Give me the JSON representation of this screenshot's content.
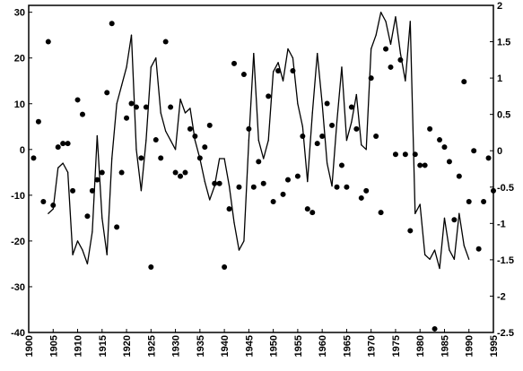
{
  "chart_data": {
    "type": "line",
    "title": "",
    "xlabel": "",
    "ylabel": "",
    "y2label": "",
    "xlim": [
      1900,
      1995
    ],
    "ylim": [
      -40,
      31.5
    ],
    "y2lim": [
      -2.5,
      2
    ],
    "grid": false,
    "legend": "none",
    "x_ticks": [
      1900,
      1905,
      1910,
      1915,
      1920,
      1925,
      1930,
      1935,
      1940,
      1945,
      1950,
      1955,
      1960,
      1965,
      1970,
      1975,
      1980,
      1985,
      1990,
      1995
    ],
    "x_tick_labels": [
      "1900",
      "1905",
      "1910",
      "1915",
      "1920",
      "1925",
      "1930",
      "1935",
      "1940",
      "1945",
      "1950",
      "1955",
      "1960",
      "1965",
      "1970",
      "1975",
      "1980",
      "1985",
      "1990",
      "1995"
    ],
    "y_ticks": [
      30,
      20,
      10,
      0,
      -10,
      -20,
      -30,
      -40
    ],
    "y_tick_labels": [
      "30",
      "20",
      "10",
      "0",
      "-10",
      "-20",
      "-30",
      "-40"
    ],
    "y2_ticks": [
      2,
      1.5,
      1,
      0.5,
      0,
      -0.5,
      -1,
      -1.5,
      -2,
      -2.5
    ],
    "y2_tick_labels": [
      "2",
      "1.5",
      "1",
      "0.5",
      "0",
      "-0.5",
      "-1",
      "-1.5",
      "-2",
      "-2.5"
    ],
    "series": [
      {
        "axis": "left",
        "style": "line",
        "color": "#000000",
        "x": [
          1904,
          1905,
          1906,
          1907,
          1908,
          1909,
          1910,
          1911,
          1912,
          1913,
          1914,
          1915,
          1916,
          1917,
          1918,
          1919,
          1920,
          1921,
          1922,
          1923,
          1924,
          1925,
          1926,
          1927,
          1928,
          1929,
          1930,
          1931,
          1932,
          1933,
          1934,
          1935,
          1936,
          1937,
          1938,
          1939,
          1940,
          1941,
          1942,
          1943,
          1944,
          1945,
          1946,
          1947,
          1948,
          1949,
          1950,
          1951,
          1952,
          1953,
          1954,
          1955,
          1956,
          1957,
          1958,
          1959,
          1960,
          1961,
          1962,
          1963,
          1964,
          1965,
          1966,
          1967,
          1968,
          1969,
          1970,
          1971,
          1972,
          1973,
          1974,
          1975,
          1976,
          1977,
          1978,
          1979,
          1980,
          1981,
          1982,
          1983,
          1984,
          1985,
          1986,
          1987,
          1988,
          1989,
          1990
        ],
        "values": [
          -14,
          -13,
          -4,
          -3,
          -5,
          -23,
          -20,
          -22,
          -25,
          -18,
          3,
          -15,
          -23,
          -2,
          10,
          14,
          18,
          25,
          0,
          -9,
          2,
          18,
          20,
          8,
          4,
          2,
          0,
          11,
          8,
          9,
          2,
          -2,
          -7,
          -11,
          -8,
          -2,
          -2,
          -8,
          -16,
          -22,
          -20,
          2,
          21,
          2,
          -2,
          2,
          17,
          19,
          15,
          22,
          20,
          10,
          5,
          -7,
          8,
          21,
          10,
          -3,
          -8,
          6,
          18,
          2,
          6,
          12,
          1,
          0,
          22,
          25,
          30,
          28,
          23,
          29,
          21,
          15,
          28,
          -14,
          -12,
          -23,
          -24,
          -22,
          -26,
          -15,
          -22,
          -24,
          -14,
          -21,
          -24
        ]
      },
      {
        "axis": "right",
        "style": "markers",
        "color": "#000000",
        "x": [
          1901,
          1902,
          1903,
          1904,
          1905,
          1906,
          1907,
          1908,
          1909,
          1910,
          1911,
          1912,
          1913,
          1914,
          1915,
          1916,
          1917,
          1918,
          1919,
          1920,
          1921,
          1922,
          1923,
          1924,
          1925,
          1926,
          1927,
          1928,
          1929,
          1930,
          1931,
          1932,
          1933,
          1934,
          1935,
          1936,
          1937,
          1938,
          1939,
          1940,
          1941,
          1942,
          1943,
          1944,
          1945,
          1946,
          1947,
          1948,
          1949,
          1950,
          1951,
          1952,
          1953,
          1954,
          1955,
          1956,
          1957,
          1958,
          1959,
          1960,
          1961,
          1962,
          1963,
          1964,
          1965,
          1966,
          1967,
          1968,
          1969,
          1970,
          1971,
          1972,
          1973,
          1974,
          1975,
          1976,
          1977,
          1978,
          1979,
          1980,
          1981,
          1982,
          1983,
          1984,
          1985,
          1986,
          1987,
          1988,
          1989,
          1990,
          1991,
          1992,
          1993,
          1994,
          1995
        ],
        "values": [
          -0.1,
          0.4,
          -0.7,
          1.5,
          -0.75,
          0.05,
          0.1,
          0.1,
          -0.55,
          0.7,
          0.5,
          -0.9,
          -0.55,
          -0.4,
          -0.3,
          0.8,
          1.75,
          -1.05,
          -0.3,
          0.45,
          0.65,
          0.6,
          -0.1,
          0.6,
          -1.6,
          0.15,
          -0.1,
          1.5,
          0.6,
          -0.3,
          -0.35,
          -0.3,
          0.3,
          0.2,
          -0.1,
          0.05,
          0.35,
          -0.45,
          -0.45,
          -1.6,
          -0.8,
          1.2,
          -0.5,
          1.05,
          0.3,
          -0.5,
          -0.15,
          -0.45,
          0.75,
          -0.7,
          1.1,
          -0.6,
          -0.4,
          1.1,
          -0.35,
          0.2,
          -0.8,
          -0.85,
          0.1,
          0.2,
          0.65,
          0.35,
          -0.5,
          -0.2,
          -0.5,
          0.6,
          0.3,
          -0.65,
          -0.55,
          1.0,
          0.2,
          -0.85,
          1.4,
          1.15,
          -0.05,
          1.25,
          -0.05,
          -1.1,
          -0.05,
          -0.2,
          -0.2,
          0.3,
          -2.45,
          0.15,
          0.05,
          -0.15,
          -0.95,
          -0.35,
          0.95,
          -0.7,
          0.0,
          -1.35,
          -0.7,
          -0.1,
          -0.55
        ]
      }
    ]
  }
}
